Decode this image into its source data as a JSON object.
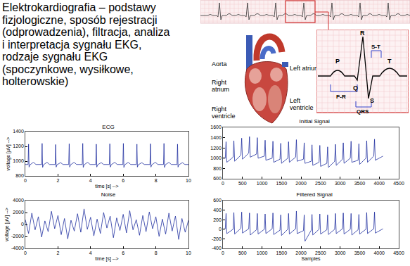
{
  "slide_text": {
    "lines": [
      "Elektrokardiografia – podstawy",
      "fizjologiczne, sposób rejestracji",
      "(odprowadzenia), filtracja, analiza",
      "i interpretacja sygnału EKG,",
      "rodzaje sygnału EKG",
      "(spoczynkowe, wysiłkowe,",
      "holterowskie)"
    ]
  },
  "heart_diagram": {
    "labels": [
      "Aorta",
      "Right atrium",
      "Right ventricle",
      "Left atrium",
      "Left ventricle"
    ]
  },
  "ecg_waveform": {
    "waves": [
      "P",
      "Q",
      "R",
      "S",
      "T"
    ],
    "intervals": [
      "S-T",
      "P-R",
      "QRS"
    ]
  },
  "chart_data": [
    {
      "type": "line",
      "title": "ECG",
      "x_label": "time [s] -->",
      "y_label": "voltage [µV] -->",
      "color": "#1f2f9f",
      "grid": false,
      "xlim": [
        0,
        10
      ],
      "xticks": [
        0,
        2,
        4,
        6,
        8,
        10
      ],
      "ylim": [
        800,
        1400
      ],
      "yticks": [
        800,
        1000,
        1200,
        1400
      ],
      "x": [
        0,
        0.17,
        0.2,
        0.23,
        0.28,
        0.5,
        0.65,
        1.0,
        1.03,
        1.06,
        1.11,
        1.33,
        1.48,
        1.83,
        1.86,
        1.89,
        1.94,
        2.16,
        2.31,
        2.66,
        2.69,
        2.72,
        2.77,
        2.99,
        3.14,
        3.49,
        3.52,
        3.55,
        3.6,
        3.82,
        3.97,
        4.32,
        4.35,
        4.38,
        4.43,
        4.65,
        4.8,
        5.15,
        5.18,
        5.21,
        5.26,
        5.48,
        5.63,
        5.98,
        6.01,
        6.04,
        6.09,
        6.31,
        6.46,
        6.81,
        6.84,
        6.87,
        6.92,
        7.14,
        7.29,
        7.64,
        7.67,
        7.7,
        7.75,
        7.97,
        8.12,
        8.47,
        8.5,
        8.53,
        8.58,
        8.8,
        8.95,
        9.3,
        9.33,
        9.36,
        9.41,
        9.63,
        9.78,
        10
      ],
      "values": [
        955,
        955,
        1230,
        920,
        950,
        985,
        955,
        955,
        1240,
        915,
        950,
        985,
        955,
        955,
        1225,
        920,
        950,
        980,
        955,
        955,
        1235,
        920,
        950,
        985,
        955,
        955,
        1240,
        915,
        950,
        985,
        955,
        955,
        1230,
        920,
        950,
        980,
        955,
        955,
        1235,
        920,
        950,
        985,
        955,
        955,
        1240,
        915,
        950,
        985,
        955,
        955,
        1230,
        920,
        950,
        980,
        955,
        955,
        1235,
        920,
        950,
        985,
        955,
        955,
        1240,
        915,
        950,
        985,
        955,
        955,
        1230,
        920,
        950,
        980,
        955,
        955
      ]
    },
    {
      "type": "line",
      "title": "Noise",
      "x_label": "time [s] -->",
      "y_label": "voltage [µV] -->",
      "color": "#1f2f9f",
      "grid": false,
      "xlim": [
        0,
        10
      ],
      "xticks": [
        0,
        2,
        4,
        6,
        8,
        10
      ],
      "ylim": [
        -4000,
        4000
      ],
      "yticks": [
        -4000,
        -2000,
        0,
        2000,
        4000
      ],
      "x": [
        0,
        0.2,
        0.4,
        0.6,
        0.8,
        1.0,
        1.2,
        1.4,
        1.6,
        1.8,
        2.0,
        2.2,
        2.4,
        2.6,
        2.8,
        3.0,
        3.2,
        3.4,
        3.6,
        3.8,
        4.0,
        4.2,
        4.4,
        4.6,
        4.8,
        5.0,
        5.2,
        5.4,
        5.6,
        5.8,
        6.0,
        6.2,
        6.4,
        6.6,
        6.8,
        7.0,
        7.2,
        7.4,
        7.6,
        7.8,
        8.0,
        8.2,
        8.4,
        8.6,
        8.8,
        9.0,
        9.2,
        9.4,
        9.6,
        9.8,
        10
      ],
      "values": [
        800,
        -1500,
        1900,
        -900,
        1300,
        -2100,
        600,
        -1200,
        2200,
        -700,
        1500,
        -1700,
        1000,
        -2400,
        700,
        -1100,
        1800,
        -1300,
        2600,
        -800,
        1200,
        -1900,
        900,
        -1500,
        2000,
        -600,
        1400,
        -2200,
        1100,
        -1000,
        1700,
        -1400,
        2300,
        -900,
        800,
        -1800,
        1500,
        -1200,
        2100,
        -700,
        1300,
        -2000,
        900,
        -1600,
        1900,
        -1100,
        1400,
        -2500,
        1000,
        -1300,
        700
      ]
    },
    {
      "type": "line",
      "title": "Initial Signal",
      "color": "#1f2f9f",
      "grid": false,
      "xlim": [
        0,
        4500
      ],
      "xticks": [
        0,
        500,
        1000,
        1500,
        2000,
        2500,
        3000,
        3500,
        4000,
        4500
      ],
      "ylim": [
        600,
        1600
      ],
      "yticks": [
        600,
        800,
        1000,
        1200,
        1400,
        1600
      ],
      "x": [
        0,
        60,
        80,
        100,
        260,
        280,
        300,
        460,
        480,
        500,
        660,
        680,
        700,
        860,
        880,
        900,
        1060,
        1080,
        1100,
        1260,
        1280,
        1300,
        1460,
        1480,
        1500,
        1660,
        1680,
        1700,
        1860,
        1880,
        1900,
        2060,
        2080,
        2100,
        2260,
        2280,
        2300,
        2460,
        2480,
        2500,
        2660,
        2680,
        2700,
        2860,
        2880,
        2900,
        3060,
        3080,
        3100,
        3260,
        3280,
        3300,
        3460,
        3480,
        3500,
        3660,
        3680,
        3700,
        3860,
        3880,
        3900,
        4096
      ],
      "values": [
        1000,
        1000,
        1320,
        920,
        1020,
        1340,
        940,
        1060,
        1390,
        980,
        1100,
        1420,
        1020,
        1080,
        1400,
        1000,
        1040,
        1350,
        960,
        1000,
        1330,
        920,
        980,
        1290,
        900,
        1000,
        1320,
        920,
        1020,
        1360,
        940,
        980,
        1300,
        900,
        940,
        1260,
        860,
        920,
        1250,
        840,
        900,
        1220,
        820,
        940,
        1270,
        860,
        980,
        1300,
        900,
        1000,
        1330,
        920,
        960,
        1280,
        880,
        1000,
        1340,
        920,
        1040,
        1370,
        960,
        1040
      ]
    },
    {
      "type": "line",
      "title": "Filtered Signal",
      "x_label": "Samples",
      "color": "#1f2f9f",
      "grid": false,
      "xlim": [
        0,
        4500
      ],
      "xticks": [
        0,
        500,
        1000,
        1500,
        2000,
        2500,
        3000,
        3500,
        4000,
        4500
      ],
      "ylim": [
        -400,
        600
      ],
      "yticks": [
        -400,
        -200,
        0,
        200,
        400,
        600
      ],
      "x": [
        0,
        60,
        80,
        100,
        260,
        280,
        300,
        460,
        480,
        500,
        660,
        680,
        700,
        860,
        880,
        900,
        1060,
        1080,
        1100,
        1260,
        1280,
        1300,
        1460,
        1480,
        1500,
        1660,
        1680,
        1700,
        1860,
        1880,
        1900,
        2060,
        2080,
        2100,
        2260,
        2280,
        2300,
        2460,
        2480,
        2500,
        2660,
        2680,
        2700,
        2860,
        2880,
        2900,
        3060,
        3080,
        3100,
        3260,
        3280,
        3300,
        3460,
        3480,
        3500,
        3660,
        3680,
        3700,
        3860,
        3880,
        3900,
        4096
      ],
      "values": [
        0,
        10,
        330,
        -90,
        0,
        350,
        -100,
        20,
        360,
        -80,
        10,
        340,
        -120,
        -10,
        330,
        -100,
        0,
        320,
        -90,
        10,
        340,
        -110,
        -20,
        300,
        -130,
        0,
        330,
        -100,
        10,
        380,
        -90,
        -30,
        300,
        -250,
        -20,
        310,
        -120,
        0,
        320,
        -100,
        -10,
        300,
        -110,
        0,
        330,
        -90,
        10,
        340,
        -100,
        0,
        330,
        -120,
        -10,
        310,
        -100,
        0,
        350,
        -90,
        10,
        360,
        -80,
        10
      ]
    }
  ]
}
